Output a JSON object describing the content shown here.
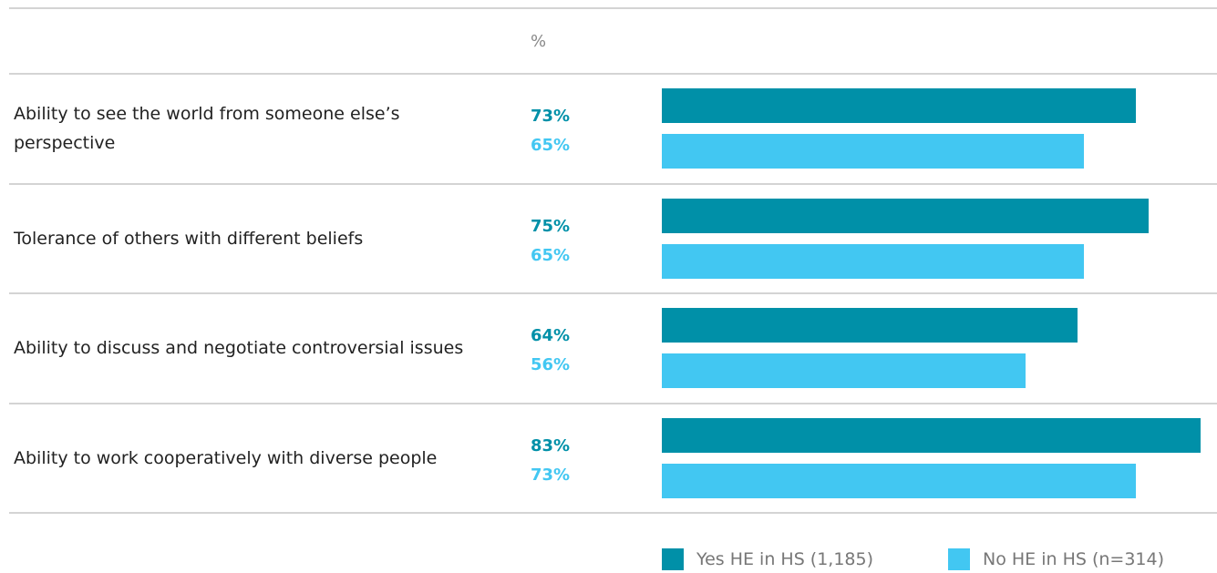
{
  "chart_data": {
    "type": "bar",
    "orientation": "horizontal",
    "unit_label": "%",
    "categories": [
      "Ability to see the world from someone else’s perspective",
      "Tolerance of others with different beliefs",
      "Ability to discuss and negotiate controversial issues",
      "Ability to work cooperatively with diverse people"
    ],
    "series": [
      {
        "name": "Yes HE in HS (1,185)",
        "color": "#0090a8",
        "values": [
          73,
          75,
          64,
          83
        ],
        "value_labels": [
          "73%",
          "75%",
          "64%",
          "83%"
        ]
      },
      {
        "name": "No HE in HS (n=314)",
        "color": "#42c7f2",
        "values": [
          65,
          65,
          56,
          73
        ],
        "value_labels": [
          "65%",
          "65%",
          "56%",
          "73%"
        ]
      }
    ]
  }
}
